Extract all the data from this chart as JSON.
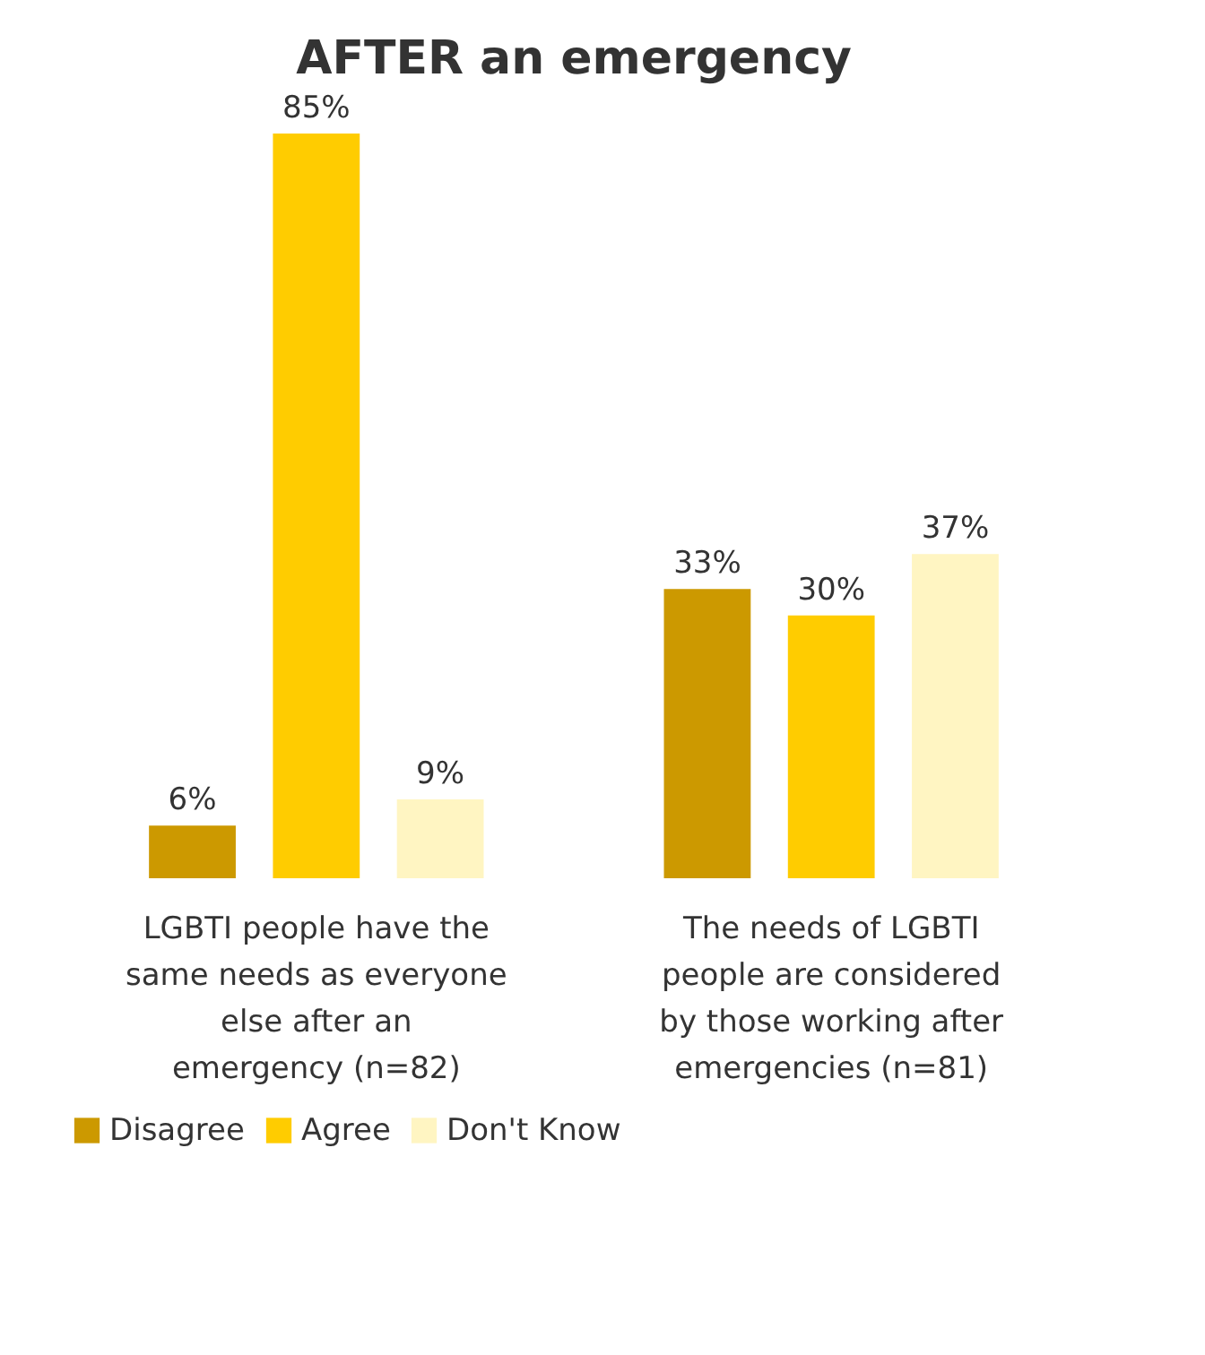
{
  "chart_data": {
    "type": "bar",
    "title": "AFTER an emergency",
    "categories": [
      "LGBTI people have the same needs as everyone else after an emergency (n=82)",
      "The needs of LGBTI people are considered by those working after emergencies (n=81)"
    ],
    "series": [
      {
        "name": "Disagree",
        "color": "#cc9900",
        "values": [
          6,
          33
        ],
        "value_labels": [
          "6%",
          "33%"
        ]
      },
      {
        "name": "Agree",
        "color": "#ffcc00",
        "values": [
          85,
          30
        ],
        "value_labels": [
          "85%",
          "30%"
        ]
      },
      {
        "name": "Don't Know",
        "color": "#fff5c2",
        "values": [
          9,
          37
        ],
        "value_labels": [
          "9%",
          "37%"
        ]
      }
    ],
    "legend": "bottom",
    "grid": false
  }
}
